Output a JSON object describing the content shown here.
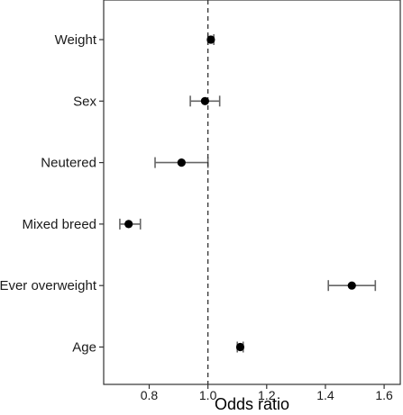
{
  "chart_data": {
    "type": "forest",
    "title": "",
    "xlabel": "Odds ratio",
    "ylabel": "",
    "xlim": [
      0.645,
      1.655
    ],
    "xticks": [
      0.8,
      1.0,
      1.2,
      1.4,
      1.6
    ],
    "xtick_labels": [
      "0.8",
      "1.0",
      "1.2",
      "1.4",
      "1.6"
    ],
    "reference_line": 1.0,
    "grid": false,
    "categories": [
      "Weight",
      "Sex",
      "Neutered",
      "Mixed breed",
      "Ever overweight",
      "Age"
    ],
    "points": [
      {
        "label": "Weight",
        "estimate": 1.01,
        "lower": 1.0,
        "upper": 1.02
      },
      {
        "label": "Sex",
        "estimate": 0.99,
        "lower": 0.94,
        "upper": 1.04
      },
      {
        "label": "Neutered",
        "estimate": 0.91,
        "lower": 0.82,
        "upper": 1.0
      },
      {
        "label": "Mixed breed",
        "estimate": 0.73,
        "lower": 0.7,
        "upper": 0.77
      },
      {
        "label": "Ever overweight",
        "estimate": 1.49,
        "lower": 1.41,
        "upper": 1.57
      },
      {
        "label": "Age",
        "estimate": 1.11,
        "lower": 1.1,
        "upper": 1.12
      }
    ],
    "colors": {
      "point": "#000000",
      "errorbar": "#666666",
      "refline": "#333333",
      "frame": "#333333"
    }
  }
}
